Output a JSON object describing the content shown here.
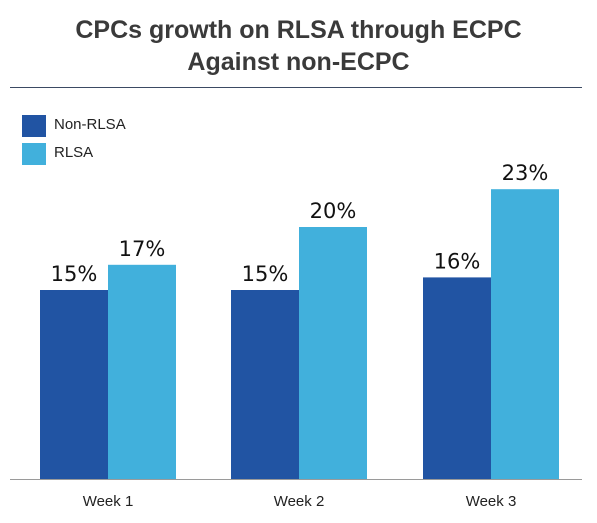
{
  "chart_data": {
    "type": "bar",
    "title_lines": [
      "CPCs growth on RLSA through ECPC",
      "Against non-ECPC"
    ],
    "categories": [
      "Week 1",
      "Week 2",
      "Week 3"
    ],
    "series": [
      {
        "name": "Non-RLSA",
        "values": [
          15,
          15,
          16
        ],
        "color": "#2154a3"
      },
      {
        "name": "RLSA",
        "values": [
          17,
          20,
          23
        ],
        "color": "#41b0dc"
      }
    ],
    "data_labels": [
      [
        "15%",
        "15%",
        "16%"
      ],
      [
        "17%",
        "20%",
        "23%"
      ]
    ],
    "ylim": [
      0,
      25
    ],
    "grid": false,
    "legend_position": "top-left",
    "axis_color": "#9a9a9a"
  }
}
